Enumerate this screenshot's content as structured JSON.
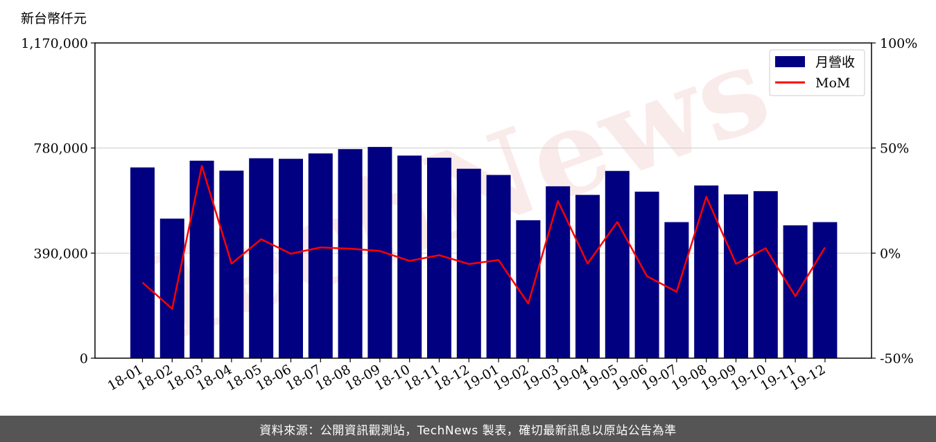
{
  "chart_data": {
    "type": "bar",
    "y_unit_label": "新台幣仟元",
    "categories": [
      "18-01",
      "18-02",
      "18-03",
      "18-04",
      "18-05",
      "18-06",
      "18-07",
      "18-08",
      "18-09",
      "18-10",
      "18-11",
      "18-12",
      "19-01",
      "19-02",
      "19-03",
      "19-04",
      "19-05",
      "19-06",
      "19-07",
      "19-08",
      "19-09",
      "19-10",
      "19-11",
      "19-12"
    ],
    "series": [
      {
        "name": "月營收",
        "type": "bar",
        "axis": "left",
        "color": "#000080",
        "values": [
          708000,
          518000,
          733000,
          696000,
          742000,
          740000,
          760000,
          776000,
          784000,
          752000,
          744000,
          703000,
          680000,
          512000,
          638000,
          606000,
          695000,
          618000,
          505000,
          641000,
          608000,
          620000,
          493000,
          505000
        ]
      },
      {
        "name": "MoM",
        "type": "line",
        "axis": "right",
        "color": "#ff0000",
        "values": [
          -14,
          -26.5,
          41.5,
          -5,
          6.6,
          -0.3,
          2.7,
          2.1,
          1,
          -3.7,
          -1,
          -5.2,
          -3.3,
          -24,
          24.8,
          -5,
          14.8,
          -11,
          -18.4,
          26.8,
          -5.1,
          2.3,
          -20.5,
          2.7
        ]
      }
    ],
    "ylim_left": [
      0,
      1170000
    ],
    "yticks_left": [
      "0",
      "390,000",
      "780,000",
      "1,170,000"
    ],
    "ylim_right": [
      -50,
      100
    ],
    "yticks_right": [
      "-50%",
      "0%",
      "50%",
      "100%"
    ],
    "grid": "horizontal",
    "legend_position": "top-right"
  },
  "watermark": "TechNews",
  "footer": {
    "text": "資料來源：公開資訊觀測站，TechNews 製表，確切最新訊息以原站公告為準"
  }
}
